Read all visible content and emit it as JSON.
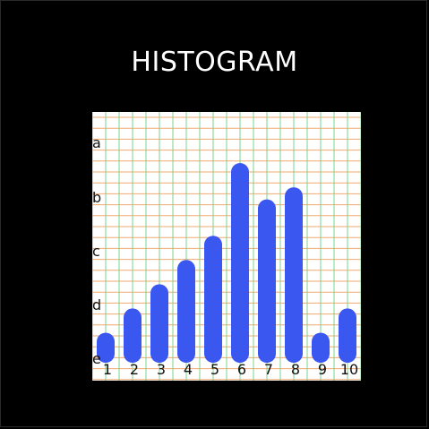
{
  "page": {
    "title": "HISTOGRAM"
  },
  "chart_data": {
    "type": "bar",
    "categories": [
      "1",
      "2",
      "3",
      "4",
      "5",
      "6",
      "7",
      "8",
      "9",
      "10"
    ],
    "values": [
      1,
      3,
      5,
      7,
      9,
      15,
      12,
      13,
      1,
      3
    ],
    "ylim": [
      0,
      17
    ],
    "y_tick_labels": [
      "a",
      "b",
      "c",
      "d",
      "e"
    ],
    "grid": true,
    "colors": {
      "bar": "#3a57f0",
      "plot_bg": "#ffffff",
      "grid_horizontal": "#f0a86e",
      "grid_vertical": "#7fd08a"
    }
  }
}
